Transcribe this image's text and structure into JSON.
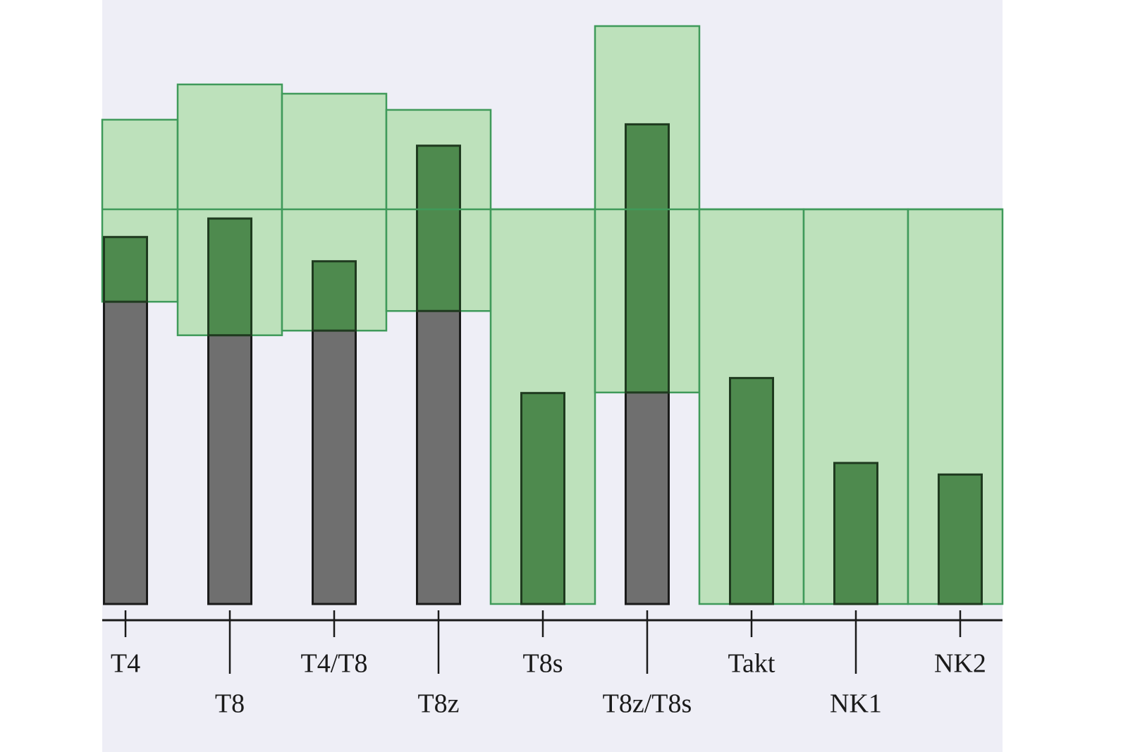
{
  "chart_data": {
    "type": "bar",
    "categories": [
      "T4",
      "T8",
      "T4/T8",
      "T8z",
      "T8s",
      "T8z/T8s",
      "Takt",
      "NK1",
      "NK2"
    ],
    "values": [
      63.5,
      66.7,
      59.3,
      79.3,
      36.5,
      83.0,
      39.1,
      24.4,
      22.4
    ],
    "ranges": [
      [
        52.3,
        83.8
      ],
      [
        46.5,
        89.9
      ],
      [
        47.3,
        88.3
      ],
      [
        50.7,
        85.5
      ],
      [
        0,
        68.3
      ],
      [
        36.6,
        100
      ],
      [
        0,
        68.3
      ],
      [
        0,
        68.3
      ],
      [
        0,
        68.3
      ]
    ],
    "reference_line": 68.3,
    "ylim": [
      0,
      100
    ],
    "bar_color": "#6f6f6f",
    "bar_in_range_color": "#4e8a4e",
    "range_color": "#b9e0b5",
    "range_edge_color": "#3f9a5a"
  }
}
